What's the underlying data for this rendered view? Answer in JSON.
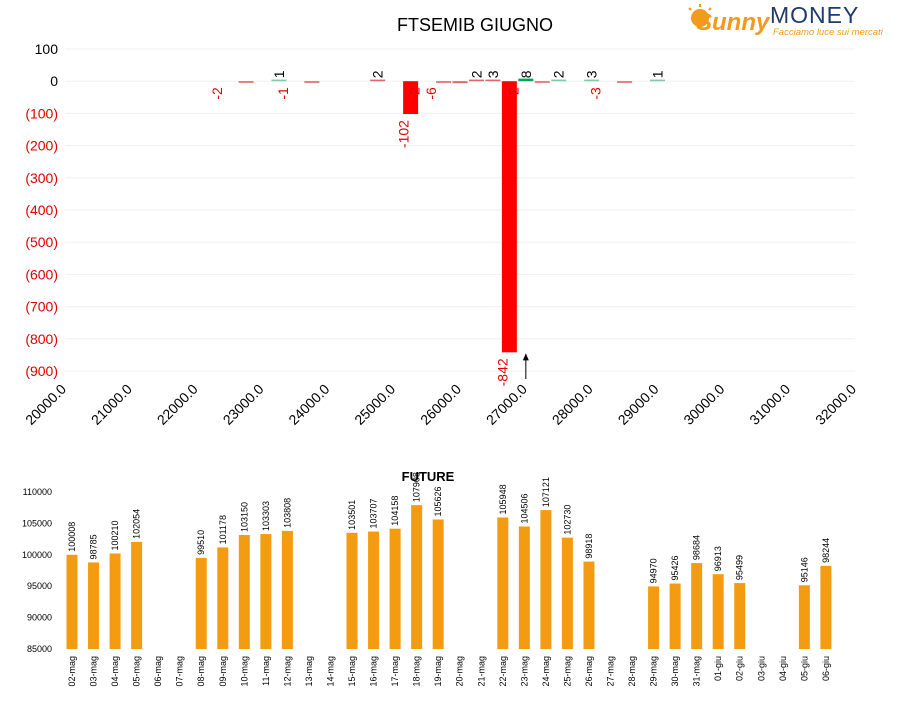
{
  "logo": {
    "brand_script": "Sunny",
    "brand_word": "MONEY",
    "tagline": "Facciamo luce sui mercati"
  },
  "colors": {
    "negative_bar": "#ff0000",
    "positive_bar": "#00a651",
    "small_negative": "#e06666",
    "small_positive": "#7ccba2",
    "future_bar": "#f39c12",
    "negative_tick": "#e00000",
    "logo_orange": "#f29a1b",
    "logo_navy": "#1f3a6e"
  },
  "chart_data": [
    {
      "type": "bar",
      "title": "FTSEMIB GIUGNO",
      "xlabel": "",
      "ylabel": "",
      "x_ticks": [
        "20000.0",
        "21000.0",
        "22000.0",
        "23000.0",
        "24000.0",
        "25000.0",
        "26000.0",
        "27000.0",
        "28000.0",
        "29000.0",
        "30000.0",
        "31000.0",
        "32000.0"
      ],
      "y_ticks": [
        "100",
        "0",
        "(100)",
        "(200)",
        "(300)",
        "(400)",
        "(500)",
        "(600)",
        "(700)",
        "(800)",
        "(900)"
      ],
      "xlim": [
        20000,
        32000
      ],
      "ylim": [
        -900,
        100
      ],
      "grid": "horizontal",
      "points": [
        {
          "x": 22750,
          "value": -2,
          "label": "-2"
        },
        {
          "x": 23250,
          "value": 1,
          "label": "1"
        },
        {
          "x": 23750,
          "value": -1,
          "label": "-1"
        },
        {
          "x": 24750,
          "value": 2,
          "label": "2"
        },
        {
          "x": 25250,
          "value": -102,
          "label": "-102"
        },
        {
          "x": 25750,
          "value": -2,
          "label": "-2"
        },
        {
          "x": 26000,
          "value": -6,
          "label": "-6"
        },
        {
          "x": 26250,
          "value": 2,
          "label": "2"
        },
        {
          "x": 26500,
          "value": 3,
          "label": "3"
        },
        {
          "x": 26750,
          "value": -842,
          "label": "-842"
        },
        {
          "x": 27000,
          "value": 8,
          "label": "8"
        },
        {
          "x": 27250,
          "value": -2,
          "label": "-2"
        },
        {
          "x": 27500,
          "value": 2,
          "label": "2"
        },
        {
          "x": 28000,
          "value": 3,
          "label": "3"
        },
        {
          "x": 28500,
          "value": -3,
          "label": "-3"
        },
        {
          "x": 29000,
          "value": 1,
          "label": "1"
        }
      ],
      "marker": {
        "x": 27000
      }
    },
    {
      "type": "bar",
      "title": "FUTURE",
      "xlabel": "",
      "ylabel": "",
      "ylim": [
        85000,
        110000
      ],
      "y_ticks": [
        "110000",
        "105000",
        "100000",
        "95000",
        "90000",
        "85000"
      ],
      "categories": [
        "02-mag",
        "03-mag",
        "04-mag",
        "05-mag",
        "06-mag",
        "07-mag",
        "08-mag",
        "09-mag",
        "10-mag",
        "11-mag",
        "12-mag",
        "13-mag",
        "14-mag",
        "15-mag",
        "16-mag",
        "17-mag",
        "18-mag",
        "19-mag",
        "20-mag",
        "21-mag",
        "22-mag",
        "23-mag",
        "24-mag",
        "25-mag",
        "26-mag",
        "27-mag",
        "28-mag",
        "29-mag",
        "30-mag",
        "31-mag",
        "01-giu",
        "02-giu",
        "03-giu",
        "04-giu",
        "05-giu",
        "06-giu"
      ],
      "values": [
        100008,
        98785,
        100210,
        102054,
        null,
        null,
        99510,
        101178,
        103150,
        103303,
        103808,
        null,
        null,
        103501,
        103707,
        104158,
        107908,
        105626,
        null,
        null,
        105948,
        104506,
        107121,
        102730,
        98918,
        null,
        null,
        94970,
        95426,
        98684,
        96913,
        95499,
        null,
        null,
        95146,
        98244
      ],
      "labels": [
        "100008",
        "98785",
        "100210",
        "102054",
        "",
        "",
        "99510",
        "101178",
        "103150",
        "103303",
        "103808",
        "",
        "",
        "103501",
        "103707",
        "104158",
        "107908",
        "105626",
        "",
        "",
        "105948",
        "104506",
        "107121",
        "102730",
        "98918",
        "",
        "",
        "94970",
        "95426",
        "98684",
        "96913",
        "95499",
        "",
        "",
        "95146",
        "98244"
      ]
    }
  ]
}
